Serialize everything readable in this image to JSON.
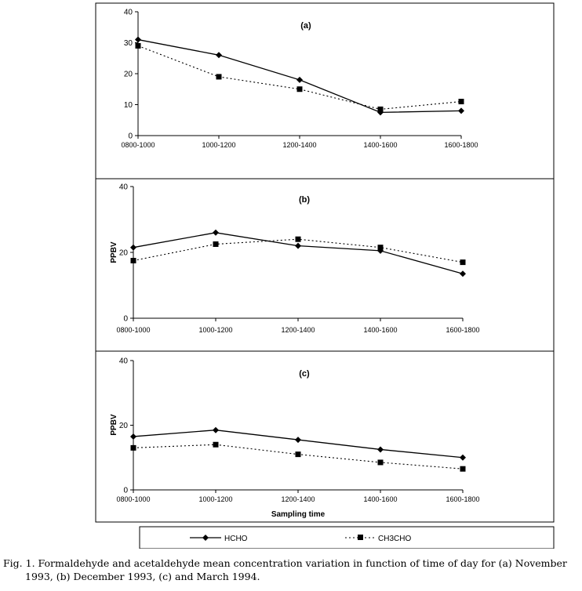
{
  "caption": {
    "line1": "Fig. 1. Formaldehyde and acetaldehyde mean concentration variation in function of time of day for (a) November",
    "line2": "1993, (b) December 1993, (c) and March 1994."
  },
  "legend": {
    "hcho": "HCHO",
    "ch3cho": "CH3CHO"
  },
  "chart_data": [
    {
      "type": "line",
      "title": "(a)",
      "xlabel": "",
      "ylabel": "",
      "categories": [
        "0800-1000",
        "1000-1200",
        "1200-1400",
        "1400-1600",
        "1600-1800"
      ],
      "ylim": [
        0,
        40
      ],
      "yticks": [
        "0",
        "10",
        "20",
        "30",
        "40"
      ],
      "series": [
        {
          "name": "HCHO",
          "values": [
            31,
            26,
            18,
            7.5,
            8
          ],
          "style": "solid",
          "marker": "diamond"
        },
        {
          "name": "CH3CHO",
          "values": [
            29,
            19,
            15,
            8.5,
            11
          ],
          "style": "dotted",
          "marker": "square"
        }
      ]
    },
    {
      "type": "line",
      "title": "(b)",
      "xlabel": "",
      "ylabel": "PPBV",
      "categories": [
        "0800-1000",
        "1000-1200",
        "1200-1400",
        "1400-1600",
        "1600-1800"
      ],
      "ylim": [
        0,
        40
      ],
      "yticks": [
        "0",
        "20",
        "40"
      ],
      "series": [
        {
          "name": "HCHO",
          "values": [
            21.5,
            26,
            22,
            20.5,
            13.5
          ],
          "style": "solid",
          "marker": "diamond"
        },
        {
          "name": "CH3CHO",
          "values": [
            17.5,
            22.5,
            24,
            21.5,
            17
          ],
          "style": "dotted",
          "marker": "square"
        }
      ]
    },
    {
      "type": "line",
      "title": "(c)",
      "xlabel": "Sampling time",
      "ylabel": "PPBV",
      "categories": [
        "0800-1000",
        "1000-1200",
        "1200-1400",
        "1400-1600",
        "1600-1800"
      ],
      "ylim": [
        0,
        40
      ],
      "yticks": [
        "0",
        "20",
        "40"
      ],
      "series": [
        {
          "name": "HCHO",
          "values": [
            16.5,
            18.5,
            15.5,
            12.5,
            10
          ],
          "style": "solid",
          "marker": "diamond"
        },
        {
          "name": "CH3CHO",
          "values": [
            13,
            14,
            11,
            8.5,
            6.5
          ],
          "style": "dotted",
          "marker": "square"
        }
      ]
    }
  ]
}
